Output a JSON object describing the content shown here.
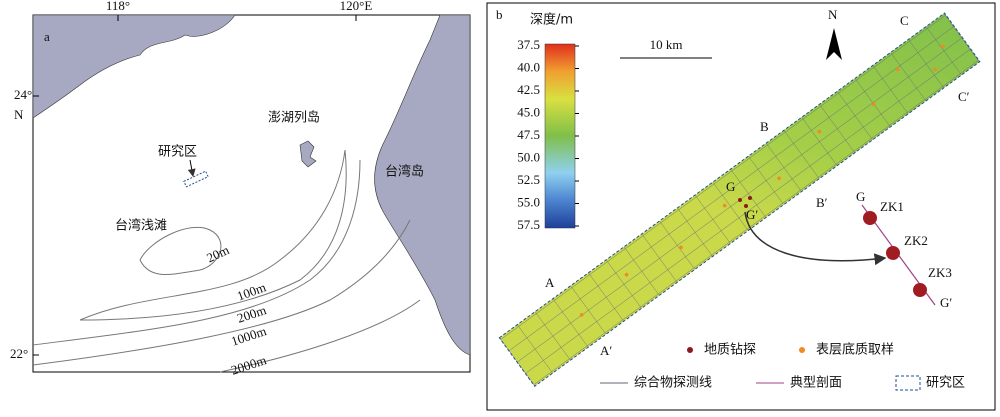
{
  "panel_a": {
    "label": "a",
    "lon_labels": [
      "118°",
      "120°E"
    ],
    "lat_labels": [
      "24°",
      "N",
      "22°"
    ],
    "study_area": "研究区",
    "penghu": "澎湖列岛",
    "taiwan": "台湾岛",
    "shoal": "台湾浅滩",
    "isobaths": [
      "20m",
      "100m",
      "200m",
      "1000m",
      "2000m"
    ]
  },
  "panel_b": {
    "label": "b",
    "colorbar_title": "深度/m",
    "colorbar_ticks": [
      "37.5",
      "40.0",
      "42.5",
      "45.0",
      "47.5",
      "50.0",
      "52.5",
      "55.0",
      "57.5"
    ],
    "scale": "10 km",
    "north": "N",
    "sections": [
      "A",
      "A′",
      "B",
      "B′",
      "C",
      "C′",
      "G",
      "G′"
    ],
    "inset": {
      "start": "G",
      "holes": [
        "ZK1",
        "ZK2",
        "ZK3"
      ],
      "end": "G′"
    },
    "legend": [
      "地质钻探",
      "表层底质取样",
      "综合物探测线",
      "典型剖面",
      "研究区"
    ]
  }
}
